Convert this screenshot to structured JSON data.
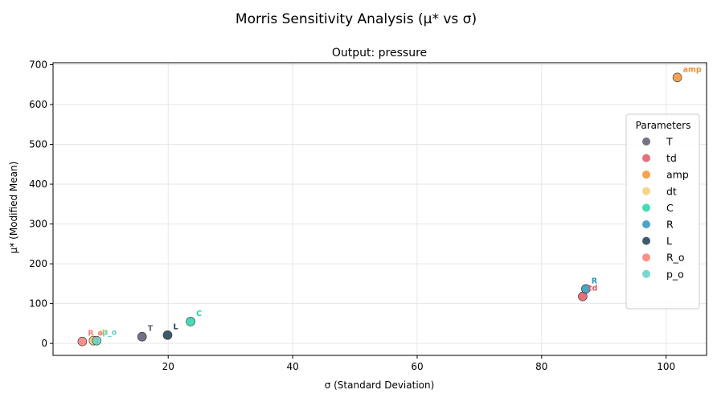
{
  "suptitle": "Morris Sensitivity Analysis (μ* vs σ)",
  "chart_data": {
    "type": "scatter",
    "title": "Output: pressure",
    "xlabel": "σ (Standard Deviation)",
    "ylabel": "μ* (Modified Mean)",
    "xlim": [
      1.5,
      106.5
    ],
    "ylim": [
      -30,
      705
    ],
    "xticks": [
      20,
      40,
      60,
      80,
      100
    ],
    "yticks": [
      0,
      100,
      200,
      300,
      400,
      500,
      600,
      700
    ],
    "grid": true,
    "legend": {
      "title": "Parameters",
      "placement": "center-right"
    },
    "series": [
      {
        "name": "T",
        "color": "#5b5b70",
        "x": 15.8,
        "y": 17
      },
      {
        "name": "td",
        "color": "#e15763",
        "x": 86.6,
        "y": 118
      },
      {
        "name": "amp",
        "color": "#f39230",
        "x": 101.8,
        "y": 668
      },
      {
        "name": "dt",
        "color": "#f8cd73",
        "x": 8.0,
        "y": 7
      },
      {
        "name": "C",
        "color": "#24d5a8",
        "x": 23.6,
        "y": 55
      },
      {
        "name": "R",
        "color": "#2a96b8",
        "x": 87.1,
        "y": 137
      },
      {
        "name": "L",
        "color": "#1c3e54",
        "x": 19.9,
        "y": 21
      },
      {
        "name": "R_o",
        "color": "#fb7c74",
        "x": 6.2,
        "y": 5
      },
      {
        "name": "p_o",
        "color": "#5dd2c8",
        "x": 8.5,
        "y": 7
      }
    ]
  }
}
